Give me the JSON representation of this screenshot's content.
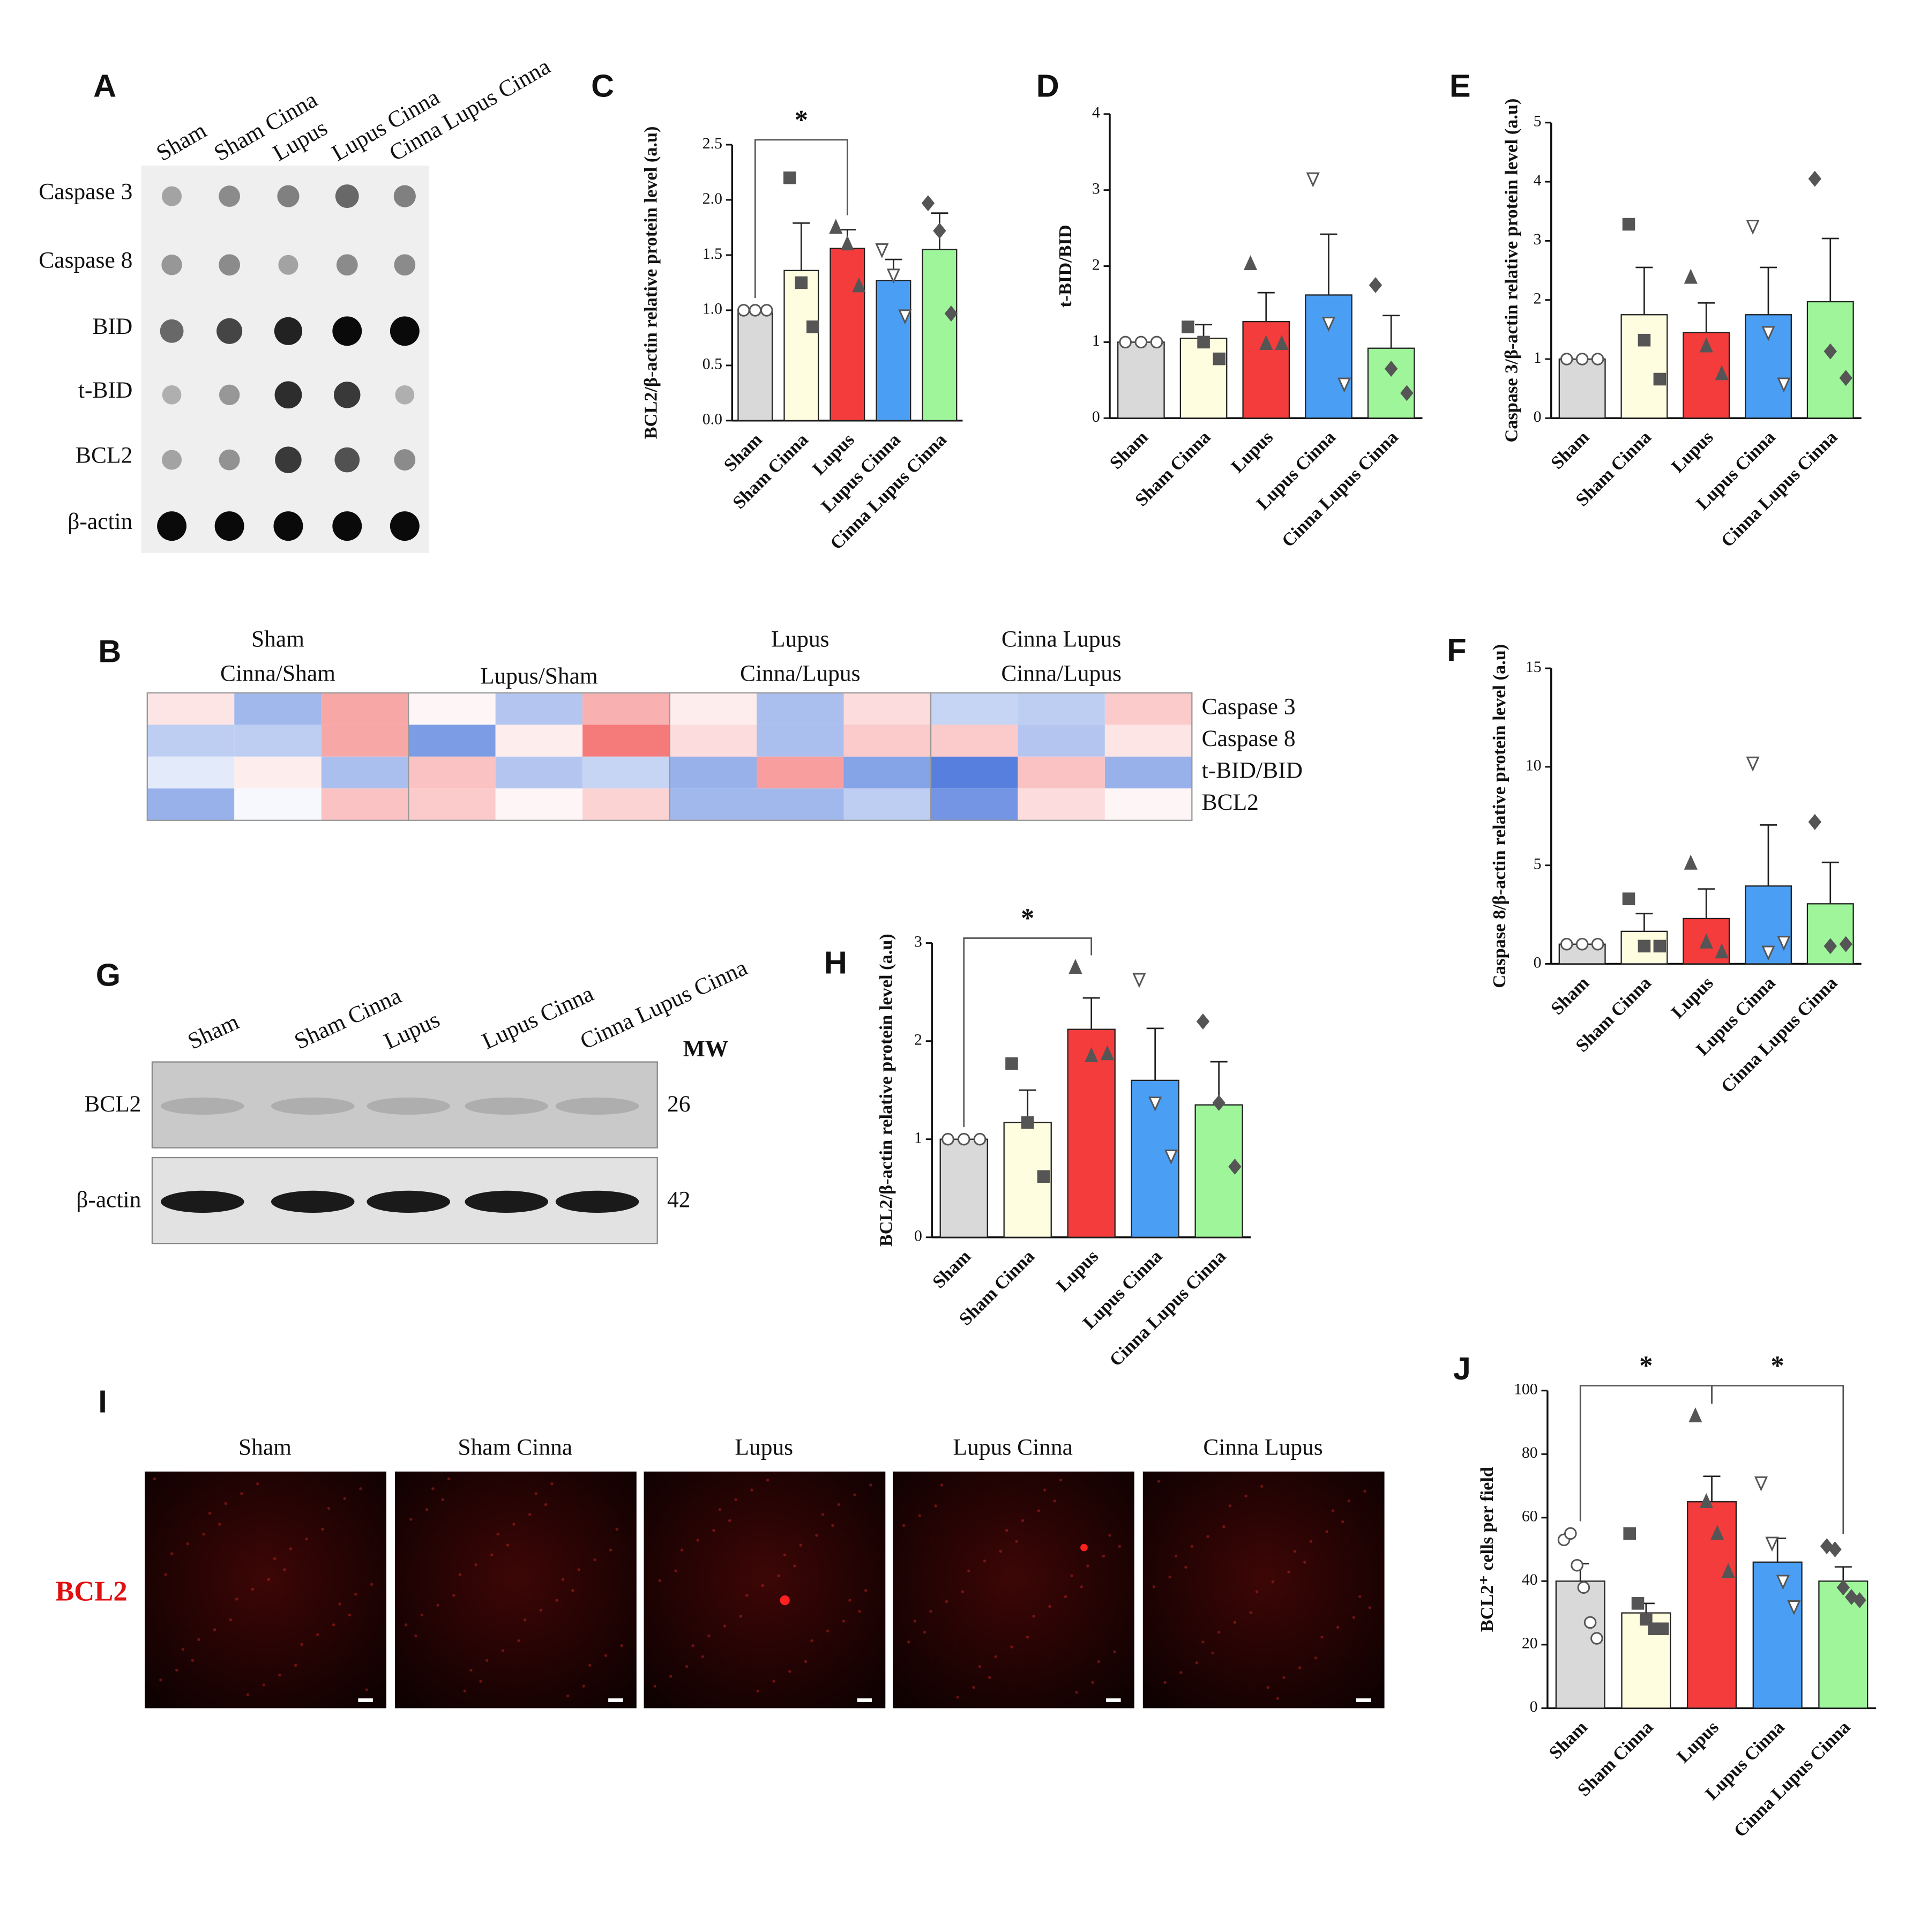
{
  "dot_blot": {
    "label": "A",
    "columns": [
      "Sham",
      "Sham Cinna",
      "Lupus",
      "Lupus Cinna",
      "Cinna Lupus Cinna"
    ],
    "rows": [
      "Caspase 3",
      "Caspase 8",
      "BID",
      "t-BID",
      "BCL2",
      "β-actin"
    ]
  },
  "western_blot": {
    "label": "G",
    "columns": [
      "Sham",
      "Sham Cinna",
      "Lupus",
      "Lupus Cinna",
      "Cinna Lupus Cinna"
    ],
    "rows": [
      "BCL2",
      "β-actin"
    ],
    "mw_header": "MW",
    "mw": [
      26,
      42
    ]
  },
  "immunofluorescence": {
    "label": "I",
    "columns": [
      "Sham",
      "Sham Cinna",
      "Lupus",
      "Lupus Cinna",
      "Cinna Lupus"
    ],
    "row": "BCL2",
    "row_color": "#e01010"
  },
  "chart_data": [
    {
      "type": "heatmap",
      "label": "B",
      "column_groups": [
        [
          "Sham",
          "Cinna/Sham"
        ],
        [
          "Lupus/Sham"
        ],
        [
          "Lupus",
          "Cinna/Lupus"
        ],
        [
          "Cinna Lupus",
          "Cinna/Lupus"
        ]
      ],
      "rows": [
        "Caspase 3",
        "Caspase 8",
        "t-BID/BID",
        "BCL2"
      ],
      "zlim": [
        -1,
        1
      ],
      "low_color": "#2f62d6",
      "high_color": "#f03c3c",
      "values": [
        [
          0.15,
          -0.5,
          0.5,
          0.05,
          -0.4,
          0.45,
          0.1,
          -0.45,
          0.2,
          -0.3,
          -0.35,
          0.3
        ],
        [
          -0.35,
          -0.35,
          0.5,
          -0.7,
          0.1,
          0.75,
          0.2,
          -0.45,
          0.3,
          0.3,
          -0.4,
          0.15
        ],
        [
          -0.15,
          0.1,
          -0.45,
          0.35,
          -0.4,
          -0.3,
          -0.55,
          0.55,
          -0.65,
          -0.9,
          0.35,
          -0.55
        ],
        [
          -0.55,
          -0.05,
          0.35,
          0.3,
          0.05,
          0.25,
          -0.5,
          -0.5,
          -0.35,
          -0.75,
          0.2,
          0.05
        ]
      ]
    },
    {
      "type": "bar",
      "label": "C",
      "ylabel": "BCL2/β-actin relative protein level (a.u)",
      "categories": [
        "Sham",
        "Sham Cinna",
        "Lupus",
        "Lupus Cinna",
        "Cinna Lupus Cinna"
      ],
      "colors": [
        "#d9d9d9",
        "#fffde0",
        "#f43c3c",
        "#4a9ff5",
        "#9ef59a"
      ],
      "markers": [
        "circle-open",
        "square",
        "triangle",
        "triangle-down-open",
        "diamond"
      ],
      "point_color": "#555555",
      "values": [
        1.0,
        1.36,
        1.56,
        1.27,
        1.55
      ],
      "errors": [
        0,
        0.43,
        0.17,
        0.19,
        0.33
      ],
      "points": [
        [
          1,
          1,
          1
        ],
        [
          2.2,
          1.25,
          0.85
        ],
        [
          1.75,
          1.6,
          1.22
        ],
        [
          1.55,
          1.32,
          0.95
        ],
        [
          1.97,
          1.72,
          0.97
        ]
      ],
      "ylim": [
        0,
        2.5
      ],
      "yticks": [
        {
          "value": 0,
          "label": "0.0"
        },
        0.5,
        {
          "value": 1,
          "label": "1.0"
        },
        1.5,
        {
          "value": 2,
          "label": "2.0"
        },
        2.5
      ],
      "annotations": [
        {
          "text": "*",
          "from": "Sham",
          "to": "Lupus"
        }
      ]
    },
    {
      "type": "bar",
      "label": "D",
      "ylabel": "t-BID/BID",
      "categories": [
        "Sham",
        "Sham Cinna",
        "Lupus",
        "Lupus Cinna",
        "Cinna Lupus Cinna"
      ],
      "colors": [
        "#d9d9d9",
        "#fffde0",
        "#f43c3c",
        "#4a9ff5",
        "#9ef59a"
      ],
      "markers": [
        "circle-open",
        "square",
        "triangle",
        "triangle-down-open",
        "diamond"
      ],
      "point_color": "#555555",
      "values": [
        1.0,
        1.05,
        1.27,
        1.62,
        0.92
      ],
      "errors": [
        0,
        0.18,
        0.38,
        0.8,
        0.43
      ],
      "points": [
        [
          1,
          1,
          1
        ],
        [
          1.2,
          1.0,
          0.78
        ],
        [
          2.03,
          0.98,
          0.98
        ],
        [
          3.15,
          1.25,
          0.45
        ],
        [
          1.75,
          0.65,
          0.33
        ]
      ],
      "ylim": [
        0,
        4
      ],
      "yticks": [
        0,
        1,
        2,
        3,
        4
      ]
    },
    {
      "type": "bar",
      "label": "E",
      "ylabel": "Caspase 3/β-actin relative protein level (a.u)",
      "categories": [
        "Sham",
        "Sham Cinna",
        "Lupus",
        "Lupus Cinna",
        "Cinna Lupus Cinna"
      ],
      "colors": [
        "#d9d9d9",
        "#fffde0",
        "#f43c3c",
        "#4a9ff5",
        "#9ef59a"
      ],
      "markers": [
        "circle-open",
        "square",
        "triangle",
        "triangle-down-open",
        "diamond"
      ],
      "point_color": "#555555",
      "values": [
        1.0,
        1.75,
        1.45,
        1.75,
        1.97
      ],
      "errors": [
        0,
        0.8,
        0.5,
        0.8,
        1.07
      ],
      "points": [
        [
          1,
          1,
          1
        ],
        [
          3.28,
          1.32,
          0.66
        ],
        [
          2.38,
          1.22,
          0.75
        ],
        [
          3.25,
          1.45,
          0.58
        ],
        [
          4.05,
          1.13,
          0.68
        ]
      ],
      "ylim": [
        0,
        5
      ],
      "yticks": [
        0,
        1,
        2,
        3,
        4,
        5
      ]
    },
    {
      "type": "bar",
      "label": "F",
      "ylabel": "Caspase 8/β-actin relative protein level (a.u)",
      "categories": [
        "Sham",
        "Sham Cinna",
        "Lupus",
        "Lupus Cinna",
        "Cinna Lupus Cinna"
      ],
      "colors": [
        "#d9d9d9",
        "#fffde0",
        "#f43c3c",
        "#4a9ff5",
        "#9ef59a"
      ],
      "markers": [
        "circle-open",
        "square",
        "triangle",
        "triangle-down-open",
        "diamond"
      ],
      "point_color": "#555555",
      "values": [
        1.0,
        1.65,
        2.3,
        3.95,
        3.05
      ],
      "errors": [
        0,
        0.9,
        1.5,
        3.1,
        2.1
      ],
      "points": [
        [
          1,
          1,
          1
        ],
        [
          3.3,
          0.9,
          0.9
        ],
        [
          5.1,
          1.1,
          0.6
        ],
        [
          10.2,
          0.6,
          1.1
        ],
        [
          7.2,
          0.9,
          1.0
        ]
      ],
      "ylim": [
        0,
        15
      ],
      "yticks": [
        0,
        5,
        10,
        15
      ]
    },
    {
      "type": "bar",
      "label": "H",
      "ylabel": "BCL2/β-actin relative protein level (a.u)",
      "categories": [
        "Sham",
        "Sham Cinna",
        "Lupus",
        "Lupus Cinna",
        "Cinna Lupus Cinna"
      ],
      "colors": [
        "#d9d9d9",
        "#fffde0",
        "#f43c3c",
        "#4a9ff5",
        "#9ef59a"
      ],
      "markers": [
        "circle-open",
        "square",
        "triangle",
        "triangle-down-open",
        "diamond"
      ],
      "point_color": "#555555",
      "values": [
        1.0,
        1.17,
        2.12,
        1.6,
        1.35
      ],
      "errors": [
        0,
        0.33,
        0.32,
        0.53,
        0.44
      ],
      "points": [
        [
          1,
          1,
          1
        ],
        [
          1.77,
          1.17,
          0.62
        ],
        [
          2.75,
          1.85,
          1.87
        ],
        [
          2.63,
          1.37,
          0.83
        ],
        [
          2.2,
          1.37,
          0.72
        ]
      ],
      "ylim": [
        0,
        3
      ],
      "yticks": [
        0,
        1,
        2,
        3
      ],
      "annotations": [
        {
          "text": "*",
          "from": "Sham",
          "to": "Lupus"
        }
      ]
    },
    {
      "type": "bar",
      "label": "J",
      "ylabel": "BCL2⁺ cells per field",
      "categories": [
        "Sham",
        "Sham Cinna",
        "Lupus",
        "Lupus Cinna",
        "Cinna Lupus Cinna"
      ],
      "colors": [
        "#d9d9d9",
        "#fffde0",
        "#f43c3c",
        "#4a9ff5",
        "#9ef59a"
      ],
      "markers": [
        "circle-open",
        "square",
        "triangle",
        "triangle-down-open",
        "diamond"
      ],
      "point_color": "#555555",
      "values": [
        40,
        30,
        65,
        46,
        40
      ],
      "errors": [
        5.5,
        3,
        8,
        7.5,
        4.5
      ],
      "points": [
        [
          53,
          55,
          45,
          38,
          27,
          22
        ],
        [
          55,
          33,
          28,
          25,
          25
        ],
        [
          92,
          65,
          55,
          43
        ],
        [
          71,
          52,
          40,
          32
        ],
        [
          51,
          50,
          38,
          35,
          34
        ]
      ],
      "ylim": [
        0,
        100
      ],
      "yticks": [
        0,
        20,
        40,
        60,
        80,
        100
      ],
      "annotations": [
        {
          "text": "*",
          "from": "Sham",
          "to": "Lupus"
        },
        {
          "text": "*",
          "from": "Lupus",
          "to": "Cinna Lupus Cinna"
        }
      ]
    }
  ]
}
